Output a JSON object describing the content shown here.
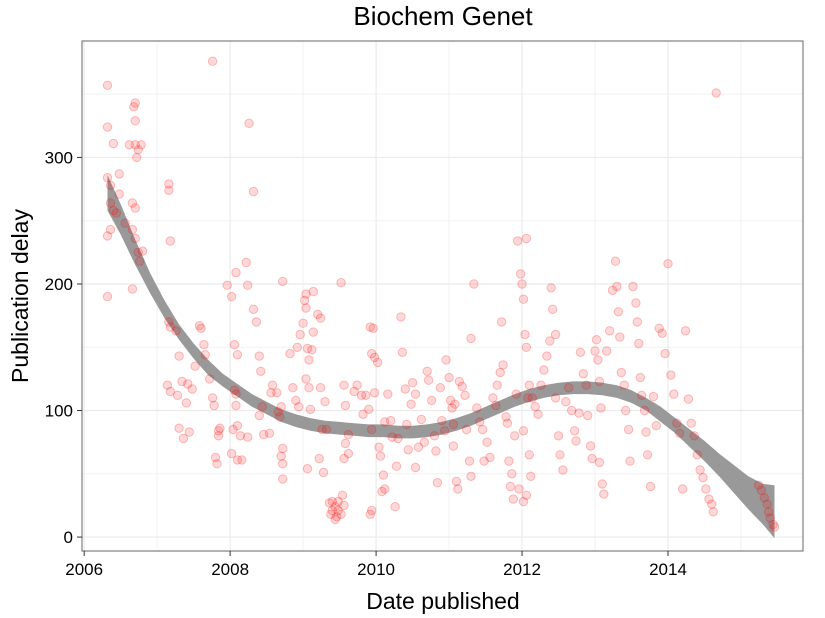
{
  "chart_data": {
    "type": "scatter",
    "title": "Biochem Genet",
    "xlabel": "Date published",
    "ylabel": "Publication delay",
    "x_ticks": [
      "2006",
      "2008",
      "2010",
      "2012",
      "2014"
    ],
    "y_ticks": [
      "0",
      "100",
      "200",
      "300"
    ],
    "xlim": [
      2005.97,
      2015.85
    ],
    "ylim": [
      -11,
      392
    ],
    "grid": true,
    "point_color": "#ff0000",
    "band_color": "#999999",
    "points": [
      [
        2006.32,
        357
      ],
      [
        2006.32,
        324
      ],
      [
        2006.4,
        311
      ],
      [
        2006.48,
        287
      ],
      [
        2006.36,
        278
      ],
      [
        2006.36,
        264
      ],
      [
        2006.32,
        284
      ],
      [
        2006.4,
        258
      ],
      [
        2006.32,
        238
      ],
      [
        2006.36,
        243
      ],
      [
        2006.32,
        190
      ],
      [
        2006.44,
        256
      ],
      [
        2006.48,
        271
      ],
      [
        2006.68,
        340
      ],
      [
        2006.7,
        343
      ],
      [
        2006.7,
        329
      ],
      [
        2006.7,
        310
      ],
      [
        2006.62,
        310
      ],
      [
        2006.72,
        300
      ],
      [
        2006.78,
        310
      ],
      [
        2006.74,
        306
      ],
      [
        2006.66,
        264
      ],
      [
        2006.7,
        260
      ],
      [
        2006.66,
        243
      ],
      [
        2006.7,
        236
      ],
      [
        2006.74,
        225
      ],
      [
        2006.66,
        196
      ],
      [
        2006.76,
        218
      ],
      [
        2006.8,
        226
      ],
      [
        2006.56,
        248
      ],
      [
        2007.16,
        279
      ],
      [
        2007.16,
        274
      ],
      [
        2007.18,
        234
      ],
      [
        2007.16,
        170
      ],
      [
        2007.18,
        166
      ],
      [
        2007.26,
        163
      ],
      [
        2007.14,
        120
      ],
      [
        2007.18,
        115
      ],
      [
        2007.28,
        112
      ],
      [
        2007.3,
        143
      ],
      [
        2007.34,
        123
      ],
      [
        2007.3,
        86
      ],
      [
        2007.36,
        78
      ],
      [
        2007.4,
        106
      ],
      [
        2007.44,
        83
      ],
      [
        2007.42,
        121
      ],
      [
        2007.48,
        117
      ],
      [
        2007.52,
        135
      ],
      [
        2007.58,
        167
      ],
      [
        2007.6,
        165
      ],
      [
        2007.64,
        152
      ],
      [
        2007.66,
        144
      ],
      [
        2007.72,
        125
      ],
      [
        2007.76,
        110
      ],
      [
        2007.78,
        104
      ],
      [
        2007.8,
        63
      ],
      [
        2007.84,
        84
      ],
      [
        2007.84,
        80
      ],
      [
        2007.86,
        86
      ],
      [
        2007.82,
        58
      ],
      [
        2007.76,
        376
      ],
      [
        2007.96,
        199
      ],
      [
        2008.02,
        190
      ],
      [
        2008.06,
        152
      ],
      [
        2008.1,
        144
      ],
      [
        2008.06,
        116
      ],
      [
        2008.08,
        113
      ],
      [
        2008.08,
        104
      ],
      [
        2008.04,
        85
      ],
      [
        2008.02,
        66
      ],
      [
        2008.1,
        61
      ],
      [
        2008.1,
        88
      ],
      [
        2008.14,
        80
      ],
      [
        2008.16,
        61
      ],
      [
        2008.24,
        79
      ],
      [
        2008.08,
        209
      ],
      [
        2008.22,
        217
      ],
      [
        2008.24,
        199
      ],
      [
        2008.26,
        327
      ],
      [
        2008.32,
        273
      ],
      [
        2008.32,
        180
      ],
      [
        2008.36,
        170
      ],
      [
        2008.4,
        143
      ],
      [
        2008.42,
        131
      ],
      [
        2008.4,
        96
      ],
      [
        2008.44,
        103
      ],
      [
        2008.46,
        81
      ],
      [
        2008.54,
        82
      ],
      [
        2008.56,
        114
      ],
      [
        2008.58,
        120
      ],
      [
        2008.64,
        114
      ],
      [
        2008.66,
        99
      ],
      [
        2008.68,
        95
      ],
      [
        2008.7,
        103
      ],
      [
        2008.72,
        70
      ],
      [
        2008.72,
        58
      ],
      [
        2008.7,
        64
      ],
      [
        2008.72,
        46
      ],
      [
        2008.72,
        202
      ],
      [
        2008.82,
        145
      ],
      [
        2008.86,
        118
      ],
      [
        2008.9,
        108
      ],
      [
        2008.94,
        103
      ],
      [
        2008.92,
        150
      ],
      [
        2008.96,
        160
      ],
      [
        2009.0,
        169
      ],
      [
        2009.02,
        187
      ],
      [
        2009.04,
        181
      ],
      [
        2009.04,
        192
      ],
      [
        2009.06,
        149
      ],
      [
        2009.08,
        140
      ],
      [
        2009.04,
        125
      ],
      [
        2009.08,
        118
      ],
      [
        2009.1,
        101
      ],
      [
        2009.06,
        54
      ],
      [
        2009.12,
        148
      ],
      [
        2009.14,
        162
      ],
      [
        2009.14,
        194
      ],
      [
        2009.2,
        176
      ],
      [
        2009.24,
        173
      ],
      [
        2009.24,
        118
      ],
      [
        2009.26,
        85
      ],
      [
        2009.22,
        62
      ],
      [
        2009.28,
        51
      ],
      [
        2009.3,
        107
      ],
      [
        2009.32,
        85
      ],
      [
        2009.36,
        27
      ],
      [
        2009.38,
        18
      ],
      [
        2009.4,
        21
      ],
      [
        2009.44,
        24
      ],
      [
        2009.46,
        16
      ],
      [
        2009.48,
        21
      ],
      [
        2009.52,
        18
      ],
      [
        2009.44,
        14
      ],
      [
        2009.4,
        28
      ],
      [
        2009.48,
        28
      ],
      [
        2009.54,
        33
      ],
      [
        2009.56,
        25
      ],
      [
        2009.52,
        201
      ],
      [
        2009.56,
        120
      ],
      [
        2009.58,
        104
      ],
      [
        2009.62,
        81
      ],
      [
        2009.58,
        74
      ],
      [
        2009.62,
        66
      ],
      [
        2009.56,
        62
      ],
      [
        2009.7,
        115
      ],
      [
        2009.74,
        120
      ],
      [
        2009.8,
        112
      ],
      [
        2009.82,
        97
      ],
      [
        2009.86,
        112
      ],
      [
        2009.9,
        101
      ],
      [
        2009.92,
        166
      ],
      [
        2009.96,
        165
      ],
      [
        2009.94,
        145
      ],
      [
        2009.98,
        142
      ],
      [
        2010.02,
        138
      ],
      [
        2009.98,
        114
      ],
      [
        2009.94,
        85
      ],
      [
        2009.94,
        21
      ],
      [
        2009.92,
        18
      ],
      [
        2010.04,
        71
      ],
      [
        2010.06,
        64
      ],
      [
        2010.1,
        49
      ],
      [
        2010.12,
        38
      ],
      [
        2010.08,
        36
      ],
      [
        2010.12,
        91
      ],
      [
        2010.16,
        113
      ],
      [
        2010.2,
        92
      ],
      [
        2010.22,
        79
      ],
      [
        2010.26,
        24
      ],
      [
        2010.28,
        56
      ],
      [
        2010.3,
        78
      ],
      [
        2010.34,
        174
      ],
      [
        2010.36,
        146
      ],
      [
        2010.4,
        117
      ],
      [
        2010.42,
        89
      ],
      [
        2010.44,
        69
      ],
      [
        2010.48,
        105
      ],
      [
        2010.5,
        122
      ],
      [
        2010.54,
        113
      ],
      [
        2010.54,
        55
      ],
      [
        2010.58,
        71
      ],
      [
        2010.62,
        93
      ],
      [
        2010.66,
        75
      ],
      [
        2010.7,
        131
      ],
      [
        2010.72,
        124
      ],
      [
        2010.76,
        108
      ],
      [
        2010.8,
        80
      ],
      [
        2010.82,
        68
      ],
      [
        2010.84,
        43
      ],
      [
        2010.88,
        118
      ],
      [
        2010.9,
        92
      ],
      [
        2010.94,
        84
      ],
      [
        2010.96,
        140
      ],
      [
        2011.0,
        126
      ],
      [
        2011.02,
        108
      ],
      [
        2011.04,
        102
      ],
      [
        2011.08,
        105
      ],
      [
        2011.06,
        89
      ],
      [
        2011.06,
        72
      ],
      [
        2011.1,
        44
      ],
      [
        2011.12,
        38
      ],
      [
        2011.14,
        123
      ],
      [
        2011.18,
        119
      ],
      [
        2011.22,
        112
      ],
      [
        2011.24,
        85
      ],
      [
        2011.28,
        60
      ],
      [
        2011.3,
        48
      ],
      [
        2011.3,
        157
      ],
      [
        2011.34,
        200
      ],
      [
        2011.38,
        102
      ],
      [
        2011.42,
        91
      ],
      [
        2011.46,
        85
      ],
      [
        2011.48,
        60
      ],
      [
        2011.52,
        75
      ],
      [
        2011.56,
        63
      ],
      [
        2011.6,
        110
      ],
      [
        2011.64,
        104
      ],
      [
        2011.66,
        120
      ],
      [
        2011.7,
        130
      ],
      [
        2011.74,
        136
      ],
      [
        2011.72,
        170
      ],
      [
        2011.78,
        95
      ],
      [
        2011.8,
        90
      ],
      [
        2011.82,
        60
      ],
      [
        2011.84,
        40
      ],
      [
        2011.86,
        50
      ],
      [
        2011.88,
        30
      ],
      [
        2011.9,
        80
      ],
      [
        2011.92,
        113
      ],
      [
        2011.94,
        234
      ],
      [
        2011.98,
        208
      ],
      [
        2012.0,
        200
      ],
      [
        2012.02,
        188
      ],
      [
        2012.06,
        236
      ],
      [
        2012.04,
        160
      ],
      [
        2012.06,
        150
      ],
      [
        2012.1,
        120
      ],
      [
        2012.08,
        110
      ],
      [
        2012.02,
        84
      ],
      [
        2012.1,
        65
      ],
      [
        2012.12,
        48
      ],
      [
        2011.96,
        38
      ],
      [
        2012.02,
        28
      ],
      [
        2012.06,
        33
      ],
      [
        2012.14,
        110
      ],
      [
        2012.18,
        103
      ],
      [
        2012.22,
        97
      ],
      [
        2012.26,
        120
      ],
      [
        2012.3,
        132
      ],
      [
        2012.34,
        143
      ],
      [
        2012.38,
        155
      ],
      [
        2012.4,
        197
      ],
      [
        2012.42,
        180
      ],
      [
        2012.46,
        160
      ],
      [
        2012.46,
        110
      ],
      [
        2012.5,
        80
      ],
      [
        2012.52,
        65
      ],
      [
        2012.56,
        53
      ],
      [
        2012.6,
        107
      ],
      [
        2012.64,
        118
      ],
      [
        2012.68,
        100
      ],
      [
        2012.72,
        84
      ],
      [
        2012.74,
        76
      ],
      [
        2012.78,
        98
      ],
      [
        2012.8,
        146
      ],
      [
        2012.84,
        129
      ],
      [
        2012.88,
        120
      ],
      [
        2012.9,
        96
      ],
      [
        2012.94,
        72
      ],
      [
        2012.96,
        62
      ],
      [
        2013.0,
        147
      ],
      [
        2013.02,
        156
      ],
      [
        2013.04,
        140
      ],
      [
        2013.06,
        123
      ],
      [
        2013.08,
        102
      ],
      [
        2013.06,
        59
      ],
      [
        2013.1,
        42
      ],
      [
        2013.12,
        34
      ],
      [
        2013.16,
        147
      ],
      [
        2013.2,
        163
      ],
      [
        2013.24,
        195
      ],
      [
        2013.28,
        218
      ],
      [
        2013.3,
        198
      ],
      [
        2013.32,
        178
      ],
      [
        2013.34,
        158
      ],
      [
        2013.36,
        130
      ],
      [
        2013.4,
        120
      ],
      [
        2013.42,
        100
      ],
      [
        2013.46,
        85
      ],
      [
        2013.48,
        60
      ],
      [
        2013.52,
        198
      ],
      [
        2013.56,
        185
      ],
      [
        2013.58,
        170
      ],
      [
        2013.6,
        153
      ],
      [
        2013.62,
        126
      ],
      [
        2013.64,
        112
      ],
      [
        2013.68,
        100
      ],
      [
        2013.7,
        83
      ],
      [
        2013.72,
        65
      ],
      [
        2013.76,
        40
      ],
      [
        2013.8,
        111
      ],
      [
        2013.84,
        88
      ],
      [
        2013.88,
        165
      ],
      [
        2013.92,
        161
      ],
      [
        2013.96,
        145
      ],
      [
        2014.0,
        216
      ],
      [
        2014.04,
        128
      ],
      [
        2014.08,
        113
      ],
      [
        2014.12,
        90
      ],
      [
        2014.16,
        82
      ],
      [
        2014.2,
        38
      ],
      [
        2014.24,
        163
      ],
      [
        2014.28,
        109
      ],
      [
        2014.32,
        90
      ],
      [
        2014.36,
        80
      ],
      [
        2014.4,
        65
      ],
      [
        2014.44,
        53
      ],
      [
        2014.48,
        47
      ],
      [
        2014.52,
        38
      ],
      [
        2014.56,
        30
      ],
      [
        2014.6,
        26
      ],
      [
        2014.62,
        20
      ],
      [
        2014.66,
        351
      ],
      [
        2015.24,
        41
      ],
      [
        2015.28,
        37
      ],
      [
        2015.32,
        31
      ],
      [
        2015.36,
        26
      ],
      [
        2015.38,
        20
      ],
      [
        2015.4,
        15
      ],
      [
        2015.44,
        10
      ],
      [
        2015.46,
        8
      ]
    ],
    "smooth": [
      [
        2006.32,
        272
      ],
      [
        2006.5,
        251
      ],
      [
        2006.7,
        225
      ],
      [
        2006.9,
        201
      ],
      [
        2007.1,
        180
      ],
      [
        2007.3,
        162
      ],
      [
        2007.5,
        147
      ],
      [
        2007.7,
        134
      ],
      [
        2007.9,
        124
      ],
      [
        2008.1,
        116
      ],
      [
        2008.3,
        108
      ],
      [
        2008.5,
        102
      ],
      [
        2008.7,
        96
      ],
      [
        2008.9,
        92
      ],
      [
        2009.1,
        89
      ],
      [
        2009.3,
        87
      ],
      [
        2009.5,
        86
      ],
      [
        2009.7,
        85
      ],
      [
        2009.9,
        84
      ],
      [
        2010.1,
        84
      ],
      [
        2010.3,
        83
      ],
      [
        2010.5,
        83
      ],
      [
        2010.7,
        84
      ],
      [
        2010.9,
        86
      ],
      [
        2011.1,
        89
      ],
      [
        2011.3,
        93
      ],
      [
        2011.5,
        98
      ],
      [
        2011.7,
        103
      ],
      [
        2011.9,
        108
      ],
      [
        2012.1,
        112
      ],
      [
        2012.3,
        115
      ],
      [
        2012.5,
        117
      ],
      [
        2012.7,
        118
      ],
      [
        2012.9,
        118
      ],
      [
        2013.1,
        117
      ],
      [
        2013.3,
        115
      ],
      [
        2013.5,
        111
      ],
      [
        2013.7,
        105
      ],
      [
        2013.9,
        97
      ],
      [
        2014.1,
        88
      ],
      [
        2014.3,
        78
      ],
      [
        2014.5,
        68
      ],
      [
        2014.7,
        57
      ],
      [
        2014.9,
        46
      ],
      [
        2015.1,
        35
      ],
      [
        2015.3,
        26
      ],
      [
        2015.46,
        20
      ]
    ],
    "band_halfwidth": [
      14,
      12,
      10,
      8,
      7,
      6,
      6,
      6,
      5,
      5,
      5,
      5,
      5,
      5,
      5,
      5,
      5,
      5,
      5,
      5,
      5,
      5,
      5,
      5,
      5,
      5,
      5,
      5,
      5,
      5,
      5,
      5,
      5,
      5,
      5,
      5,
      5,
      5,
      6,
      6,
      7,
      8,
      9,
      11,
      13,
      16,
      21
    ]
  }
}
